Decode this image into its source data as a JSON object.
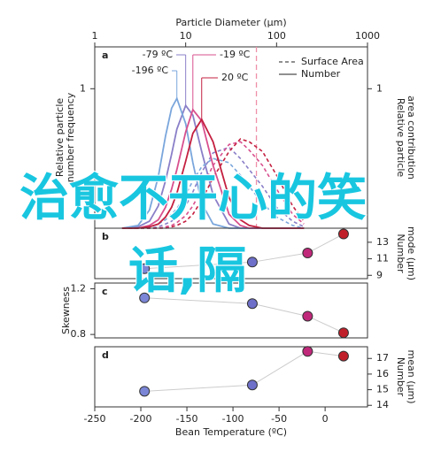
{
  "chart_data": [
    {
      "type": "line",
      "panel": "a",
      "xlabel": "Particle Diameter (μm)",
      "xscale": "log",
      "xlim": [
        1,
        1000
      ],
      "xticks": [
        1,
        10,
        100,
        1000
      ],
      "ylabel": [
        "Relative particle",
        "number frequency"
      ],
      "ylim": [
        0,
        1.3
      ],
      "yticks": [
        1
      ],
      "y2label": [
        "Relative particle",
        "area contribution"
      ],
      "y2lim": [
        0,
        1.3
      ],
      "y2ticks": [
        1
      ],
      "legend": [
        {
          "label": "Surface Area",
          "style": "dashed"
        },
        {
          "label": "Number",
          "style": "solid"
        }
      ],
      "legend_position": "top-right",
      "reference_line": {
        "x": 60,
        "color": "#ee8fa8"
      },
      "x": [
        2,
        3,
        4,
        5,
        6,
        7,
        8,
        10,
        12,
        15,
        20,
        30,
        40,
        50,
        70,
        100,
        150,
        200
      ],
      "series": [
        {
          "name": "-79 ºC",
          "color": "#8a7fc8",
          "values": [
            0,
            0.01,
            0.05,
            0.16,
            0.34,
            0.53,
            0.71,
            0.88,
            0.81,
            0.55,
            0.24,
            0.03,
            0,
            0,
            0,
            0,
            0,
            0
          ],
          "area_values": [
            0,
            0,
            0,
            0.01,
            0.03,
            0.05,
            0.08,
            0.16,
            0.26,
            0.4,
            0.54,
            0.58,
            0.5,
            0.42,
            0.3,
            0.15,
            0.05,
            0.01
          ]
        },
        {
          "name": "-196 ºC",
          "color": "#7aa6dc",
          "values": [
            0,
            0.02,
            0.13,
            0.37,
            0.66,
            0.86,
            0.93,
            0.75,
            0.47,
            0.18,
            0.03,
            0,
            0,
            0,
            0,
            0,
            0,
            0
          ],
          "area_values": [
            0,
            0,
            0.01,
            0.03,
            0.06,
            0.1,
            0.14,
            0.24,
            0.34,
            0.44,
            0.5,
            0.47,
            0.38,
            0.3,
            0.18,
            0.08,
            0.02,
            0
          ]
        },
        {
          "name": "-19 ºC",
          "color": "#d8508e",
          "values": [
            0,
            0,
            0.02,
            0.06,
            0.15,
            0.28,
            0.42,
            0.69,
            0.85,
            0.77,
            0.45,
            0.1,
            0.02,
            0,
            0,
            0,
            0,
            0
          ],
          "area_values": [
            0,
            0,
            0,
            0,
            0.01,
            0.02,
            0.04,
            0.09,
            0.16,
            0.28,
            0.45,
            0.6,
            0.62,
            0.56,
            0.45,
            0.28,
            0.1,
            0.03
          ]
        },
        {
          "name": "20 ºC",
          "color": "#c42040",
          "values": [
            0,
            0,
            0.01,
            0.03,
            0.08,
            0.15,
            0.25,
            0.48,
            0.68,
            0.78,
            0.62,
            0.22,
            0.06,
            0.02,
            0,
            0,
            0,
            0
          ],
          "area_values": [
            0,
            0,
            0,
            0,
            0,
            0.01,
            0.02,
            0.05,
            0.1,
            0.2,
            0.36,
            0.55,
            0.64,
            0.62,
            0.55,
            0.38,
            0.16,
            0.05
          ]
        }
      ]
    },
    {
      "type": "scatter",
      "panel": "b",
      "axis_side": "right",
      "ylabel": [
        "Number",
        "mode (μm)"
      ],
      "xlim": [
        -250,
        46
      ],
      "ylim": [
        8.6,
        14.7
      ],
      "yticks": [
        9,
        11,
        13
      ],
      "x": [
        -196,
        -79,
        -19,
        20
      ],
      "values": [
        9.8,
        10.6,
        11.7,
        14.0
      ],
      "colors": [
        "#7b86d6",
        "#6d6fc8",
        "#c0287a",
        "#c0202a"
      ]
    },
    {
      "type": "scatter",
      "panel": "c",
      "axis_side": "left",
      "ylabel": [
        "Skewness"
      ],
      "xlim": [
        -250,
        46
      ],
      "ylim": [
        0.77,
        1.25
      ],
      "yticks": [
        0.8,
        1.2
      ],
      "x": [
        -196,
        -79,
        -19,
        20
      ],
      "values": [
        1.12,
        1.07,
        0.96,
        0.815
      ],
      "colors": [
        "#7b86d6",
        "#6d6fc8",
        "#c0287a",
        "#c0202a"
      ]
    },
    {
      "type": "scatter",
      "panel": "d",
      "axis_side": "right",
      "ylabel": [
        "Number",
        "mean (μm)"
      ],
      "xlabel": "Bean Temperature (ºC)",
      "xlim": [
        -250,
        46
      ],
      "xticks": [
        -250,
        -200,
        -150,
        -100,
        -50,
        0
      ],
      "ylim": [
        13.9,
        17.75
      ],
      "yticks": [
        14,
        15,
        16,
        17
      ],
      "x": [
        -196,
        -79,
        -19,
        20
      ],
      "values": [
        14.9,
        15.3,
        17.45,
        17.15
      ],
      "colors": [
        "#7b86d6",
        "#6d6fc8",
        "#c0287a",
        "#c0202a"
      ]
    }
  ],
  "overlay_text": [
    "治愈不开心的笑",
    "话,隔"
  ]
}
